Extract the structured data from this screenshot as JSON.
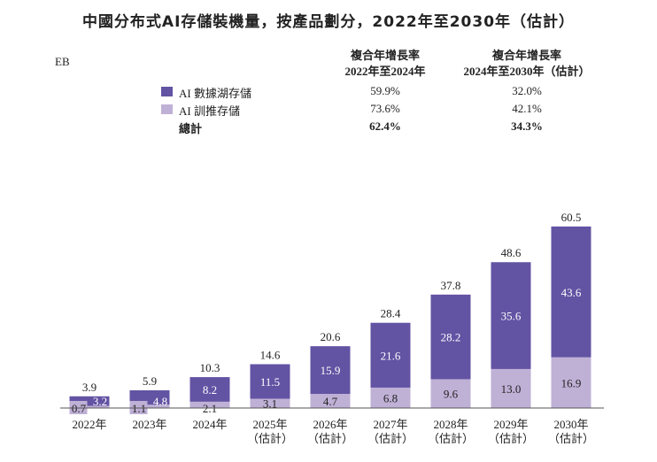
{
  "title": "中國分布式AI存儲裝機量，按產品劃分，2022年至2030年（估計）",
  "unit": "EB",
  "cagr_table": {
    "headers": [
      [
        "複合年增長率",
        "2022年至2024年"
      ],
      [
        "複合年增長率",
        "2024年至2030年（估計）"
      ]
    ],
    "rows": [
      {
        "label": "AI 數據湖存儲",
        "values": [
          "59.9%",
          "32.0%"
        ],
        "color": "#6353a3"
      },
      {
        "label": "AI 訓推存儲",
        "values": [
          "73.6%",
          "42.1%"
        ],
        "color": "#bfb0d6"
      },
      {
        "label": "總計",
        "values": [
          "62.4%",
          "34.3%"
        ],
        "bold": true
      }
    ]
  },
  "chart_data": {
    "type": "bar",
    "stacked": true,
    "categories": [
      [
        "2022年"
      ],
      [
        "2023年"
      ],
      [
        "2024年"
      ],
      [
        "2025年",
        "（估計）"
      ],
      [
        "2026年",
        "（估計）"
      ],
      [
        "2027年",
        "（估計）"
      ],
      [
        "2028年",
        "（估計）"
      ],
      [
        "2029年",
        "（估計）"
      ],
      [
        "2030年",
        "（估計）"
      ]
    ],
    "series": [
      {
        "name": "AI 訓推存儲",
        "color": "#bfb0d6",
        "values": [
          0.7,
          1.1,
          2.1,
          3.1,
          4.7,
          6.8,
          9.6,
          13.0,
          16.9
        ]
      },
      {
        "name": "AI 數據湖存儲",
        "color": "#6353a3",
        "values": [
          3.2,
          4.8,
          8.2,
          11.5,
          15.9,
          21.6,
          28.2,
          35.6,
          43.6
        ]
      }
    ],
    "totals": [
      3.9,
      5.9,
      10.3,
      14.6,
      20.6,
      28.4,
      37.8,
      48.6,
      60.5
    ],
    "ylabel": "EB"
  }
}
